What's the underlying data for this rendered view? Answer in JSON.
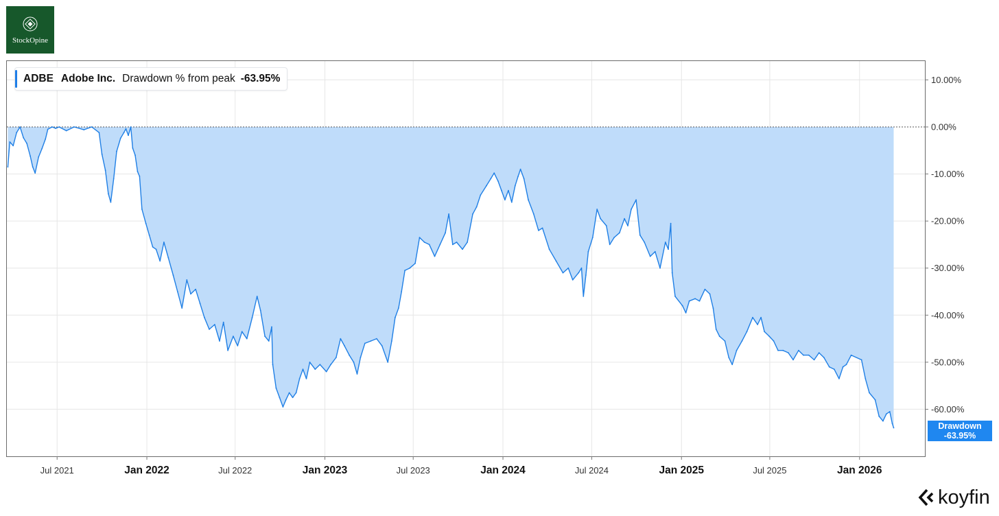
{
  "logo": {
    "text": "StockOpine",
    "icon": "diamond-emblem-icon",
    "bg_color": "#17582b"
  },
  "legend": {
    "ticker": "ADBE",
    "company": "Adobe Inc.",
    "metric": "Drawdown % from peak",
    "value": "-63.95%"
  },
  "badge": {
    "label": "Drawdown",
    "value": "-63.95%"
  },
  "brand": {
    "text": "koyfin",
    "icon": "koyfin-chevron-icon"
  },
  "colors": {
    "line": "#1f7fe5",
    "fill": "#bfdcfa",
    "badge": "#1f87f0",
    "grid": "#e6e6e6"
  },
  "chart_data": {
    "type": "area",
    "title": "",
    "xlabel": "",
    "ylabel": "",
    "ylim": [
      -70,
      14
    ],
    "y_ticks": [
      10,
      0,
      -10,
      -20,
      -30,
      -40,
      -50,
      -60
    ],
    "y_tick_labels": [
      "10.00%",
      "0.00%",
      "-10.00%",
      "-20.00%",
      "-30.00%",
      "-40.00%",
      "-50.00%",
      "-60.00%"
    ],
    "x_ticks": [
      {
        "label": "Jul 2021",
        "date": "2021-07-01",
        "major": false
      },
      {
        "label": "Jan 2022",
        "date": "2022-01-01",
        "major": true
      },
      {
        "label": "Jul 2022",
        "date": "2022-07-01",
        "major": false
      },
      {
        "label": "Jan 2023",
        "date": "2023-01-01",
        "major": true
      },
      {
        "label": "Jul 2023",
        "date": "2023-07-01",
        "major": false
      },
      {
        "label": "Jan 2024",
        "date": "2024-01-01",
        "major": true
      },
      {
        "label": "Jul 2024",
        "date": "2024-07-01",
        "major": false
      },
      {
        "label": "Jan 2025",
        "date": "2025-01-01",
        "major": true
      },
      {
        "label": "Jul 2025",
        "date": "2025-07-01",
        "major": false
      },
      {
        "label": "Jan 2026",
        "date": "2026-01-01",
        "major": true
      }
    ],
    "x_range": [
      "2021-03-20",
      "2026-05-15"
    ],
    "grid": true,
    "reference_line": 0,
    "series": [
      {
        "name": "Drawdown",
        "points": [
          [
            "2021-03-22",
            -8.5
          ],
          [
            "2021-03-26",
            -3.2
          ],
          [
            "2021-04-02",
            -4.0
          ],
          [
            "2021-04-09",
            -1.2
          ],
          [
            "2021-04-16",
            0.0
          ],
          [
            "2021-04-23",
            -2.3
          ],
          [
            "2021-04-30",
            -3.5
          ],
          [
            "2021-05-07",
            -6.2
          ],
          [
            "2021-05-12",
            -8.5
          ],
          [
            "2021-05-17",
            -9.8
          ],
          [
            "2021-05-24",
            -6.4
          ],
          [
            "2021-05-31",
            -4.6
          ],
          [
            "2021-06-07",
            -2.6
          ],
          [
            "2021-06-12",
            -0.5
          ],
          [
            "2021-06-21",
            0.0
          ],
          [
            "2021-06-28",
            -0.3
          ],
          [
            "2021-07-05",
            0.0
          ],
          [
            "2021-07-20",
            -0.8
          ],
          [
            "2021-08-05",
            0.0
          ],
          [
            "2021-08-25",
            -0.6
          ],
          [
            "2021-09-10",
            0.0
          ],
          [
            "2021-09-25",
            -1.2
          ],
          [
            "2021-10-01",
            -5.8
          ],
          [
            "2021-10-08",
            -9.2
          ],
          [
            "2021-10-14",
            -14.2
          ],
          [
            "2021-10-19",
            -16.0
          ],
          [
            "2021-10-25",
            -11.0
          ],
          [
            "2021-10-31",
            -5.2
          ],
          [
            "2021-11-08",
            -2.4
          ],
          [
            "2021-11-15",
            -1.2
          ],
          [
            "2021-11-19",
            -0.4
          ],
          [
            "2021-11-24",
            -1.8
          ],
          [
            "2021-11-29",
            0.0
          ],
          [
            "2021-12-03",
            -4.5
          ],
          [
            "2021-12-08",
            -6.0
          ],
          [
            "2021-12-13",
            -9.5
          ],
          [
            "2021-12-17",
            -10.5
          ],
          [
            "2021-12-22",
            -17.5
          ],
          [
            "2021-12-30",
            -20.5
          ],
          [
            "2022-01-06",
            -23.0
          ],
          [
            "2022-01-13",
            -25.5
          ],
          [
            "2022-01-20",
            -26.0
          ],
          [
            "2022-01-28",
            -28.5
          ],
          [
            "2022-02-05",
            -24.5
          ],
          [
            "2022-02-14",
            -27.8
          ],
          [
            "2022-02-24",
            -31.5
          ],
          [
            "2022-03-05",
            -35.0
          ],
          [
            "2022-03-14",
            -38.5
          ],
          [
            "2022-03-24",
            -32.5
          ],
          [
            "2022-04-01",
            -35.5
          ],
          [
            "2022-04-11",
            -34.5
          ],
          [
            "2022-04-20",
            -37.5
          ],
          [
            "2022-04-29",
            -40.5
          ],
          [
            "2022-05-09",
            -43.0
          ],
          [
            "2022-05-20",
            -42.0
          ],
          [
            "2022-05-30",
            -45.5
          ],
          [
            "2022-06-07",
            -41.5
          ],
          [
            "2022-06-16",
            -47.5
          ],
          [
            "2022-06-27",
            -44.5
          ],
          [
            "2022-07-06",
            -46.5
          ],
          [
            "2022-07-15",
            -43.5
          ],
          [
            "2022-07-25",
            -45.0
          ],
          [
            "2022-08-05",
            -40.5
          ],
          [
            "2022-08-15",
            -36.0
          ],
          [
            "2022-08-22",
            -39.0
          ],
          [
            "2022-08-31",
            -44.5
          ],
          [
            "2022-09-08",
            -45.5
          ],
          [
            "2022-09-14",
            -42.5
          ],
          [
            "2022-09-16",
            -50.5
          ],
          [
            "2022-09-23",
            -55.5
          ],
          [
            "2022-09-30",
            -57.5
          ],
          [
            "2022-10-07",
            -59.5
          ],
          [
            "2022-10-13",
            -58.0
          ],
          [
            "2022-10-20",
            -56.5
          ],
          [
            "2022-10-27",
            -57.5
          ],
          [
            "2022-11-03",
            -56.5
          ],
          [
            "2022-11-10",
            -53.5
          ],
          [
            "2022-11-17",
            -51.5
          ],
          [
            "2022-11-24",
            -53.5
          ],
          [
            "2022-12-01",
            -50.0
          ],
          [
            "2022-12-12",
            -51.5
          ],
          [
            "2022-12-22",
            -50.5
          ],
          [
            "2023-01-04",
            -52.0
          ],
          [
            "2023-01-13",
            -50.5
          ],
          [
            "2023-01-24",
            -49.0
          ],
          [
            "2023-02-02",
            -45.0
          ],
          [
            "2023-02-10",
            -46.5
          ],
          [
            "2023-02-20",
            -48.5
          ],
          [
            "2023-03-01",
            -50.0
          ],
          [
            "2023-03-08",
            -52.5
          ],
          [
            "2023-03-15",
            -49.0
          ],
          [
            "2023-03-24",
            -46.0
          ],
          [
            "2023-04-05",
            -45.5
          ],
          [
            "2023-04-17",
            -45.0
          ],
          [
            "2023-04-28",
            -46.5
          ],
          [
            "2023-05-10",
            -50.0
          ],
          [
            "2023-05-18",
            -45.5
          ],
          [
            "2023-05-25",
            -40.5
          ],
          [
            "2023-06-01",
            -38.5
          ],
          [
            "2023-06-07",
            -35.0
          ],
          [
            "2023-06-14",
            -30.5
          ],
          [
            "2023-06-24",
            -30.0
          ],
          [
            "2023-07-05",
            -29.0
          ],
          [
            "2023-07-14",
            -23.5
          ],
          [
            "2023-07-24",
            -24.5
          ],
          [
            "2023-08-03",
            -25.0
          ],
          [
            "2023-08-14",
            -27.5
          ],
          [
            "2023-08-25",
            -25.0
          ],
          [
            "2023-09-05",
            -22.5
          ],
          [
            "2023-09-12",
            -18.5
          ],
          [
            "2023-09-20",
            -25.0
          ],
          [
            "2023-09-28",
            -24.5
          ],
          [
            "2023-10-10",
            -26.0
          ],
          [
            "2023-10-20",
            -24.5
          ],
          [
            "2023-10-31",
            -18.5
          ],
          [
            "2023-11-08",
            -17.0
          ],
          [
            "2023-11-16",
            -14.5
          ],
          [
            "2023-11-28",
            -12.5
          ],
          [
            "2023-12-07",
            -11.0
          ],
          [
            "2023-12-14",
            -9.8
          ],
          [
            "2023-12-22",
            -11.5
          ],
          [
            "2023-12-29",
            -13.5
          ],
          [
            "2024-01-05",
            -15.5
          ],
          [
            "2024-01-12",
            -13.5
          ],
          [
            "2024-01-19",
            -16.0
          ],
          [
            "2024-01-26",
            -12.5
          ],
          [
            "2024-02-01",
            -10.5
          ],
          [
            "2024-02-06",
            -9.0
          ],
          [
            "2024-02-13",
            -11.0
          ],
          [
            "2024-02-22",
            -15.5
          ],
          [
            "2024-03-04",
            -18.5
          ],
          [
            "2024-03-14",
            -22.0
          ],
          [
            "2024-03-22",
            -21.5
          ],
          [
            "2024-04-05",
            -26.0
          ],
          [
            "2024-04-19",
            -28.5
          ],
          [
            "2024-05-03",
            -31.0
          ],
          [
            "2024-05-14",
            -30.0
          ],
          [
            "2024-05-23",
            -32.5
          ],
          [
            "2024-06-04",
            -31.0
          ],
          [
            "2024-06-10",
            -30.0
          ],
          [
            "2024-06-14",
            -36.0
          ],
          [
            "2024-06-19",
            -31.5
          ],
          [
            "2024-06-24",
            -26.5
          ],
          [
            "2024-07-03",
            -23.5
          ],
          [
            "2024-07-12",
            -17.5
          ],
          [
            "2024-07-19",
            -19.5
          ],
          [
            "2024-07-31",
            -21.0
          ],
          [
            "2024-08-07",
            -25.0
          ],
          [
            "2024-08-16",
            -23.5
          ],
          [
            "2024-08-27",
            -22.5
          ],
          [
            "2024-09-06",
            -19.5
          ],
          [
            "2024-09-13",
            -21.0
          ],
          [
            "2024-09-20",
            -17.5
          ],
          [
            "2024-09-30",
            -15.5
          ],
          [
            "2024-10-08",
            -23.0
          ],
          [
            "2024-10-17",
            -24.5
          ],
          [
            "2024-10-29",
            -27.5
          ],
          [
            "2024-11-08",
            -26.5
          ],
          [
            "2024-11-18",
            -30.0
          ],
          [
            "2024-11-29",
            -24.5
          ],
          [
            "2024-12-05",
            -26.0
          ],
          [
            "2024-12-10",
            -20.5
          ],
          [
            "2024-12-13",
            -31.0
          ],
          [
            "2024-12-19",
            -36.0
          ],
          [
            "2025-01-03",
            -38.0
          ],
          [
            "2025-01-10",
            -39.5
          ],
          [
            "2025-01-17",
            -37.0
          ],
          [
            "2025-01-29",
            -36.5
          ],
          [
            "2025-02-07",
            -37.0
          ],
          [
            "2025-02-18",
            -34.5
          ],
          [
            "2025-02-28",
            -35.5
          ],
          [
            "2025-03-07",
            -38.5
          ],
          [
            "2025-03-13",
            -43.0
          ],
          [
            "2025-03-20",
            -44.5
          ],
          [
            "2025-03-31",
            -45.5
          ],
          [
            "2025-04-08",
            -49.0
          ],
          [
            "2025-04-15",
            -50.5
          ],
          [
            "2025-04-24",
            -47.5
          ],
          [
            "2025-05-05",
            -45.5
          ],
          [
            "2025-05-15",
            -43.5
          ],
          [
            "2025-05-27",
            -40.5
          ],
          [
            "2025-06-06",
            -42.0
          ],
          [
            "2025-06-13",
            -40.5
          ],
          [
            "2025-06-20",
            -43.5
          ],
          [
            "2025-06-30",
            -44.5
          ],
          [
            "2025-07-09",
            -45.5
          ],
          [
            "2025-07-18",
            -47.5
          ],
          [
            "2025-07-28",
            -47.5
          ],
          [
            "2025-08-08",
            -48.0
          ],
          [
            "2025-08-18",
            -49.5
          ],
          [
            "2025-08-29",
            -47.5
          ],
          [
            "2025-09-08",
            -48.5
          ],
          [
            "2025-09-19",
            -48.5
          ],
          [
            "2025-09-30",
            -49.5
          ],
          [
            "2025-10-10",
            -48.0
          ],
          [
            "2025-10-20",
            -49.0
          ],
          [
            "2025-10-31",
            -51.0
          ],
          [
            "2025-11-10",
            -51.5
          ],
          [
            "2025-11-20",
            -53.5
          ],
          [
            "2025-11-28",
            -51.0
          ],
          [
            "2025-12-05",
            -50.5
          ],
          [
            "2025-12-15",
            -48.5
          ],
          [
            "2026-01-05",
            -49.5
          ],
          [
            "2026-01-13",
            -53.5
          ],
          [
            "2026-01-21",
            -56.5
          ],
          [
            "2026-02-02",
            -58.0
          ],
          [
            "2026-02-10",
            -61.5
          ],
          [
            "2026-02-18",
            -62.5
          ],
          [
            "2026-02-25",
            -61.0
          ],
          [
            "2026-03-04",
            -60.5
          ],
          [
            "2026-03-09",
            -63.0
          ],
          [
            "2026-03-12",
            -63.95
          ]
        ]
      }
    ]
  }
}
